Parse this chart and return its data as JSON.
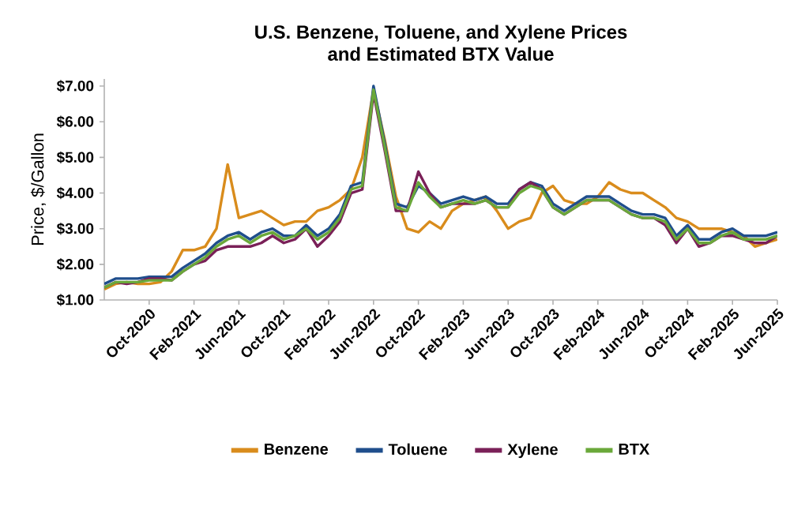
{
  "chart_data": {
    "type": "line",
    "title": "U.S. Benzene, Toluene, and Xylene Prices",
    "subtitle": "and Estimated BTX Value",
    "ylabel": "Price, $/Gallon",
    "x": [
      "2020-06",
      "2020-07",
      "2020-08",
      "2020-09",
      "2020-10",
      "2020-11",
      "2020-12",
      "2021-01",
      "2021-02",
      "2021-03",
      "2021-04",
      "2021-05",
      "2021-06",
      "2021-07",
      "2021-08",
      "2021-09",
      "2021-10",
      "2021-11",
      "2021-12",
      "2022-01",
      "2022-02",
      "2022-03",
      "2022-04",
      "2022-05",
      "2022-06",
      "2022-07",
      "2022-08",
      "2022-09",
      "2022-10",
      "2022-11",
      "2022-12",
      "2023-01",
      "2023-02",
      "2023-03",
      "2023-04",
      "2023-05",
      "2023-06",
      "2023-07",
      "2023-08",
      "2023-09",
      "2023-10",
      "2023-11",
      "2023-12",
      "2024-01",
      "2024-02",
      "2024-03",
      "2024-04",
      "2024-05",
      "2024-06",
      "2024-07",
      "2024-08",
      "2024-09",
      "2024-10",
      "2024-11",
      "2024-12",
      "2025-01",
      "2025-02",
      "2025-03",
      "2025-04",
      "2025-05",
      "2025-06"
    ],
    "series": [
      {
        "name": "Benzene",
        "color": "#d98c1c",
        "values": [
          1.3,
          1.45,
          1.5,
          1.45,
          1.45,
          1.5,
          1.8,
          2.4,
          2.4,
          2.5,
          3.0,
          4.8,
          3.3,
          3.4,
          3.5,
          3.3,
          3.1,
          3.2,
          3.2,
          3.5,
          3.6,
          3.8,
          4.1,
          5.0,
          6.9,
          5.5,
          3.9,
          3.0,
          2.9,
          3.2,
          3.0,
          3.5,
          3.7,
          3.8,
          3.9,
          3.5,
          3.0,
          3.2,
          3.3,
          4.0,
          4.2,
          3.8,
          3.7,
          3.7,
          3.9,
          4.3,
          4.1,
          4.0,
          4.0,
          3.8,
          3.6,
          3.3,
          3.2,
          3.0,
          3.0,
          3.0,
          2.9,
          2.8,
          2.5,
          2.6,
          2.7
        ]
      },
      {
        "name": "Toluene",
        "color": "#1f4e8c",
        "values": [
          1.45,
          1.6,
          1.6,
          1.6,
          1.65,
          1.65,
          1.65,
          1.9,
          2.1,
          2.3,
          2.6,
          2.8,
          2.9,
          2.7,
          2.9,
          3.0,
          2.8,
          2.8,
          3.1,
          2.8,
          3.0,
          3.4,
          4.2,
          4.3,
          7.0,
          5.4,
          3.7,
          3.6,
          4.2,
          4.0,
          3.7,
          3.8,
          3.9,
          3.8,
          3.9,
          3.7,
          3.7,
          4.1,
          4.3,
          4.2,
          3.7,
          3.5,
          3.7,
          3.9,
          3.9,
          3.9,
          3.7,
          3.5,
          3.4,
          3.4,
          3.3,
          2.8,
          3.1,
          2.7,
          2.7,
          2.9,
          3.0,
          2.8,
          2.8,
          2.8,
          2.9
        ]
      },
      {
        "name": "Xylene",
        "color": "#7a2058",
        "values": [
          1.35,
          1.5,
          1.45,
          1.5,
          1.6,
          1.6,
          1.55,
          1.8,
          2.0,
          2.1,
          2.4,
          2.5,
          2.5,
          2.5,
          2.6,
          2.8,
          2.6,
          2.7,
          3.0,
          2.5,
          2.8,
          3.2,
          4.0,
          4.1,
          6.8,
          5.2,
          3.5,
          3.5,
          4.6,
          4.0,
          3.6,
          3.7,
          3.7,
          3.7,
          3.8,
          3.6,
          3.6,
          4.1,
          4.3,
          4.1,
          3.6,
          3.4,
          3.6,
          3.8,
          3.8,
          3.8,
          3.6,
          3.4,
          3.3,
          3.3,
          3.1,
          2.6,
          3.0,
          2.5,
          2.6,
          2.8,
          2.8,
          2.7,
          2.6,
          2.6,
          2.8
        ]
      },
      {
        "name": "BTX",
        "color": "#6aa83a",
        "values": [
          1.35,
          1.5,
          1.5,
          1.5,
          1.55,
          1.55,
          1.55,
          1.8,
          2.0,
          2.2,
          2.5,
          2.7,
          2.8,
          2.6,
          2.8,
          2.9,
          2.7,
          2.8,
          3.0,
          2.7,
          2.9,
          3.3,
          4.1,
          4.2,
          6.9,
          5.3,
          3.6,
          3.5,
          4.3,
          3.9,
          3.6,
          3.7,
          3.8,
          3.7,
          3.8,
          3.6,
          3.6,
          4.0,
          4.2,
          4.1,
          3.6,
          3.4,
          3.6,
          3.8,
          3.8,
          3.8,
          3.6,
          3.4,
          3.3,
          3.3,
          3.2,
          2.7,
          3.0,
          2.6,
          2.6,
          2.8,
          2.9,
          2.7,
          2.7,
          2.7,
          2.8
        ]
      }
    ],
    "xlim": [
      "2020-06",
      "2025-06"
    ],
    "xticks": [
      {
        "value": "2020-10",
        "label": "Oct-2020"
      },
      {
        "value": "2021-02",
        "label": "Feb-2021"
      },
      {
        "value": "2021-06",
        "label": "Jun-2021"
      },
      {
        "value": "2021-10",
        "label": "Oct-2021"
      },
      {
        "value": "2022-02",
        "label": "Feb-2022"
      },
      {
        "value": "2022-06",
        "label": "Jun-2022"
      },
      {
        "value": "2022-10",
        "label": "Oct-2022"
      },
      {
        "value": "2023-02",
        "label": "Feb-2023"
      },
      {
        "value": "2023-06",
        "label": "Jun-2023"
      },
      {
        "value": "2023-10",
        "label": "Oct-2023"
      },
      {
        "value": "2024-02",
        "label": "Feb-2024"
      },
      {
        "value": "2024-06",
        "label": "Jun-2024"
      },
      {
        "value": "2024-10",
        "label": "Oct-2024"
      },
      {
        "value": "2025-02",
        "label": "Feb-2025"
      },
      {
        "value": "2025-06",
        "label": "Jun-2025"
      }
    ],
    "ylim": [
      1,
      7.2
    ],
    "yticks": [
      {
        "value": 1,
        "label": "$1.00"
      },
      {
        "value": 2,
        "label": "$2.00"
      },
      {
        "value": 3,
        "label": "$3.00"
      },
      {
        "value": 4,
        "label": "$4.00"
      },
      {
        "value": 5,
        "label": "$5.00"
      },
      {
        "value": 6,
        "label": "$6.00"
      },
      {
        "value": 7,
        "label": "$7.00"
      }
    ],
    "legend": "bottom",
    "grid": false,
    "marker": "none",
    "line_style": "solid"
  }
}
